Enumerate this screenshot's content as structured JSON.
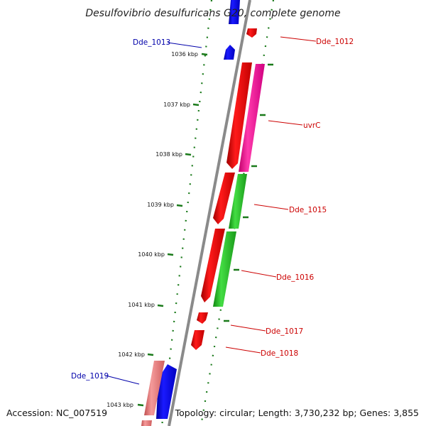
{
  "title": "Desulfovibrio desulfuricans G20, complete genome",
  "accession_text": "Accession: NC_007519",
  "summary_text": "Topology: circular; Length: 3,730,232 bp; Genes: 3,855",
  "ticks": [
    "1036 kbp",
    "1037 kbp",
    "1038 kbp",
    "1039 kbp",
    "1040 kbp",
    "1041 kbp",
    "1042 kbp",
    "1043 kbp"
  ],
  "gene_labels_right": [
    "Dde_1012",
    "uvrC",
    "Dde_1015",
    "Dde_1016",
    "Dde_1017",
    "Dde_1018"
  ],
  "gene_labels_left": [
    "Dde_1013",
    "Dde_1019"
  ],
  "colors": {
    "backbone": "#8a8a8a",
    "forward_gene": "#ff0000",
    "reverse_gene": "#0000ff",
    "uvrC": "#ff2aa0",
    "green_gene": "#22bb22",
    "pink_gene": "#e87878",
    "gc_dots": "#1a7a1a",
    "label_red": "#cc0000",
    "label_blue": "#0000aa"
  }
}
